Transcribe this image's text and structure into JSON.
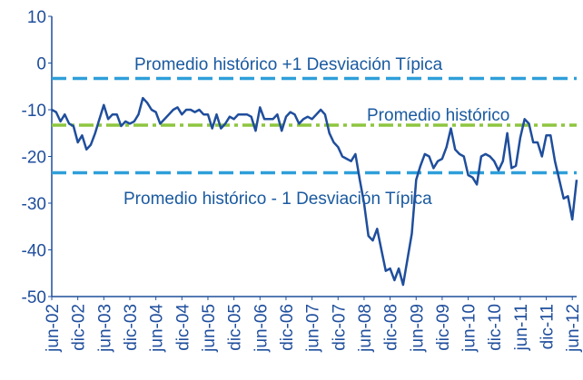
{
  "chart_data": {
    "type": "line",
    "categories": [
      "jun-02",
      null,
      null,
      null,
      null,
      null,
      "dic-02",
      null,
      null,
      null,
      null,
      null,
      "jun-03",
      null,
      null,
      null,
      null,
      null,
      "dic-03",
      null,
      null,
      null,
      null,
      null,
      "jun-04",
      null,
      null,
      null,
      null,
      null,
      "dic-04",
      null,
      null,
      null,
      null,
      null,
      "jun-05",
      null,
      null,
      null,
      null,
      null,
      "dic-05",
      null,
      null,
      null,
      null,
      null,
      "jun-06",
      null,
      null,
      null,
      null,
      null,
      "dic-06",
      null,
      null,
      null,
      null,
      null,
      "jun-07",
      null,
      null,
      null,
      null,
      null,
      "dic-07",
      null,
      null,
      null,
      null,
      null,
      "jun-08",
      null,
      null,
      null,
      null,
      null,
      "dic-08",
      null,
      null,
      null,
      null,
      null,
      "jun-09",
      null,
      null,
      null,
      null,
      null,
      "dic-09",
      null,
      null,
      null,
      null,
      null,
      "jun-10",
      null,
      null,
      null,
      null,
      null,
      "dic-10",
      null,
      null,
      null,
      null,
      null,
      "jun-11",
      null,
      null,
      null,
      null,
      null,
      "dic-11",
      null,
      null,
      null,
      null,
      null,
      "jun-12",
      null
    ],
    "series": [
      {
        "color": "#1f4e9c",
        "values": [
          -10,
          -10.5,
          -12.5,
          -11,
          -13,
          -13.5,
          -17,
          -15.5,
          -18.5,
          -17.5,
          -15,
          -12,
          -9,
          -12,
          -11,
          -11,
          -13.5,
          -12.5,
          -13,
          -12.5,
          -11,
          -7.5,
          -8.5,
          -10,
          -10.5,
          -13,
          -12,
          -11,
          -10,
          -9.5,
          -11,
          -10,
          -10,
          -10.5,
          -10,
          -11,
          -11,
          -14,
          -11,
          -14,
          -13,
          -11.5,
          -12,
          -11,
          -11,
          -11,
          -11.5,
          -14.5,
          -9.5,
          -12,
          -12,
          -12,
          -11,
          -14.5,
          -11.5,
          -10.5,
          -11,
          -13,
          -12,
          -11.5,
          -12,
          -11,
          -10,
          -11,
          -15,
          -17,
          -18,
          -20,
          -20.5,
          -21,
          -19.5,
          -25,
          -30,
          -37,
          -38,
          -35.5,
          -40,
          -44.5,
          -44,
          -46.5,
          -44,
          -47.5,
          -42,
          -36.5,
          -25,
          -22,
          -19.5,
          -20,
          -22.5,
          -21,
          -20.5,
          -18,
          -14,
          -18.5,
          -19.5,
          -20,
          -24,
          -24.5,
          -26,
          -20,
          -19.5,
          -20,
          -21,
          -23,
          -21,
          -15,
          -22.5,
          -22,
          -16,
          -12,
          -13,
          -17,
          -17,
          -20,
          -15.5,
          -15.5,
          -21,
          -25,
          -29,
          -28.5,
          -33.5,
          -25
        ]
      }
    ],
    "reference_lines": [
      {
        "value": -3.3,
        "color": "#2e9fd9",
        "dash": "dash"
      },
      {
        "value": -13.3,
        "color": "#8dc63f",
        "dash": "dashdot"
      },
      {
        "value": -23.5,
        "color": "#2e9fd9",
        "dash": "dash"
      }
    ],
    "annotations": [
      {
        "text": "Promedio histórico +1 Desviación Típica"
      },
      {
        "text": "Promedio histórico"
      },
      {
        "text": "Promedio histórico - 1 Desviación Típica"
      }
    ],
    "ylim": [
      -50,
      10
    ],
    "yticks": [
      -50,
      -40,
      -30,
      -20,
      -10,
      0,
      10
    ]
  }
}
